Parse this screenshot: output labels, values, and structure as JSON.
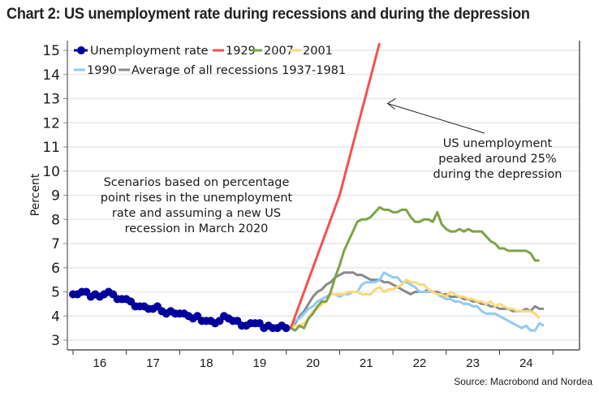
{
  "title": "Chart 2: US unemployment rate during recessions and during the depression",
  "chart_data": {
    "type": "line",
    "title": "Chart 2: US unemployment rate during recessions and during the depression",
    "xlabel": "",
    "ylabel": "Percent",
    "ylim": [
      3,
      15
    ],
    "xlim": [
      2015.5,
      2025.0
    ],
    "yticks": [
      "3",
      "4",
      "5",
      "6",
      "7",
      "8",
      "9",
      "10",
      "11",
      "12",
      "13",
      "14",
      "15"
    ],
    "xtick_positions": [
      2015.5,
      2016.5,
      2017.5,
      2018.5,
      2019.5,
      2020.5,
      2021.5,
      2022.5,
      2023.5,
      2024.5
    ],
    "xtick_labels": [
      {
        "label": "16",
        "x": 2016.0
      },
      {
        "label": "17",
        "x": 2017.0
      },
      {
        "label": "18",
        "x": 2018.0
      },
      {
        "label": "19",
        "x": 2019.0
      },
      {
        "label": "20",
        "x": 2020.0
      },
      {
        "label": "21",
        "x": 2021.0
      },
      {
        "label": "22",
        "x": 2022.0
      },
      {
        "label": "23",
        "x": 2023.0
      },
      {
        "label": "24",
        "x": 2024.0
      }
    ],
    "grid": true,
    "legend_position": "top-left",
    "legend": [
      {
        "name": "Unemployment rate",
        "color": "#00009c",
        "marker": "dot"
      },
      {
        "name": "1929",
        "color": "#f45050"
      },
      {
        "name": "2007",
        "color": "#7ea347"
      },
      {
        "name": "2001",
        "color": "#fbd97a"
      },
      {
        "name": "1990",
        "color": "#90caf5"
      },
      {
        "name": "Average of all recessions 1937-1981",
        "color": "#8a8a8a"
      }
    ],
    "series": [
      {
        "name": "Unemployment rate",
        "color": "#00009c",
        "x_start": 2015.5,
        "x_step": 0.0833,
        "values": [
          4.9,
          4.9,
          5.0,
          5.0,
          4.8,
          4.9,
          4.8,
          4.9,
          5.0,
          4.9,
          4.7,
          4.7,
          4.7,
          4.6,
          4.4,
          4.4,
          4.4,
          4.3,
          4.3,
          4.4,
          4.2,
          4.1,
          4.2,
          4.1,
          4.1,
          4.1,
          4.0,
          3.9,
          4.0,
          3.8,
          3.8,
          3.8,
          3.7,
          3.8,
          4.0,
          3.9,
          3.8,
          3.8,
          3.6,
          3.6,
          3.7,
          3.7,
          3.7,
          3.5,
          3.6,
          3.5,
          3.5,
          3.6,
          3.5
        ]
      },
      {
        "name": "1929",
        "color": "#f45050",
        "x_start": 2019.5833,
        "x_step": 0.0833,
        "values": [
          3.5,
          4.0,
          4.5,
          5.0,
          5.5,
          6.0,
          6.5,
          7.0,
          7.5,
          8.0,
          8.5,
          9.0,
          9.7,
          10.4,
          11.1,
          11.8,
          12.5,
          13.2,
          13.9,
          14.6,
          15.3
        ]
      },
      {
        "name": "2007",
        "color": "#7ea347",
        "x_start": 2019.5833,
        "x_step": 0.0833,
        "values": [
          3.5,
          3.4,
          3.6,
          3.5,
          3.9,
          4.1,
          4.4,
          4.6,
          4.6,
          5.0,
          5.6,
          6.1,
          6.7,
          7.1,
          7.5,
          7.9,
          8.0,
          8.0,
          8.1,
          8.3,
          8.5,
          8.4,
          8.4,
          8.3,
          8.3,
          8.4,
          8.4,
          8.1,
          7.9,
          7.9,
          8.0,
          8.0,
          7.9,
          8.3,
          7.8,
          7.6,
          7.5,
          7.5,
          7.6,
          7.5,
          7.6,
          7.5,
          7.5,
          7.5,
          7.3,
          7.1,
          7.0,
          6.8,
          6.8,
          6.7,
          6.7,
          6.7,
          6.7,
          6.7,
          6.6,
          6.3,
          6.3
        ]
      },
      {
        "name": "2001",
        "color": "#fbd97a",
        "x_start": 2019.5833,
        "x_step": 0.0833,
        "values": [
          3.5,
          3.6,
          3.6,
          3.7,
          3.9,
          4.2,
          4.3,
          4.5,
          4.6,
          4.9,
          4.9,
          4.9,
          4.9,
          5.0,
          5.0,
          5.0,
          4.9,
          4.9,
          4.9,
          5.1,
          5.2,
          5.0,
          5.1,
          5.1,
          5.2,
          5.3,
          5.5,
          5.4,
          5.4,
          5.3,
          5.3,
          5.1,
          5.0,
          4.9,
          4.9,
          4.8,
          5.0,
          4.9,
          4.8,
          4.8,
          4.7,
          4.7,
          4.6,
          4.6,
          4.5,
          4.6,
          4.4,
          4.5,
          4.4,
          4.3,
          4.3,
          4.2,
          4.2,
          4.2,
          4.2,
          4.1,
          3.9
        ]
      },
      {
        "name": "1990",
        "color": "#90caf5",
        "x_start": 2019.5833,
        "x_step": 0.0833,
        "values": [
          3.5,
          3.8,
          3.9,
          4.1,
          4.3,
          4.4,
          4.6,
          4.7,
          4.8,
          4.9,
          4.9,
          4.8,
          4.9,
          4.9,
          5.0,
          5.0,
          5.3,
          5.4,
          5.4,
          5.4,
          5.5,
          5.8,
          5.7,
          5.6,
          5.6,
          5.4,
          5.4,
          5.3,
          5.2,
          5.0,
          5.0,
          5.0,
          5.0,
          4.9,
          4.8,
          4.7,
          4.7,
          4.6,
          4.6,
          4.5,
          4.5,
          4.4,
          4.4,
          4.2,
          4.1,
          4.1,
          4.1,
          4.0,
          3.9,
          3.8,
          3.7,
          3.6,
          3.5,
          3.6,
          3.4,
          3.4,
          3.7,
          3.6
        ]
      },
      {
        "name": "Average of all recessions 1937-1981",
        "color": "#8a8a8a",
        "x_start": 2019.5833,
        "x_step": 0.0833,
        "values": [
          3.5,
          3.7,
          4.0,
          4.2,
          4.5,
          4.8,
          5.0,
          5.1,
          5.3,
          5.4,
          5.6,
          5.7,
          5.8,
          5.8,
          5.8,
          5.7,
          5.7,
          5.6,
          5.5,
          5.5,
          5.5,
          5.4,
          5.4,
          5.3,
          5.2,
          5.1,
          5.0,
          4.9,
          5.0,
          5.0,
          5.0,
          5.1,
          5.0,
          5.0,
          4.9,
          4.9,
          4.8,
          4.8,
          4.8,
          4.7,
          4.7,
          4.6,
          4.6,
          4.5,
          4.5,
          4.4,
          4.4,
          4.3,
          4.3,
          4.3,
          4.2,
          4.2,
          4.2,
          4.3,
          4.2,
          4.4,
          4.3,
          4.3
        ]
      }
    ],
    "annotations": [
      {
        "id": "scenario",
        "lines": [
          "Scenarios based on percentage",
          "point rises in the unemployment",
          "rate and assuming a new US",
          "recession in March 2020"
        ]
      },
      {
        "id": "depression",
        "lines": [
          "US unemployment",
          "peaked around 25%",
          "during the depression"
        ],
        "arrow_to": {
          "x": 2021.4,
          "y": 12.8
        }
      }
    ]
  },
  "source": "Source: Macrobond and Nordea"
}
